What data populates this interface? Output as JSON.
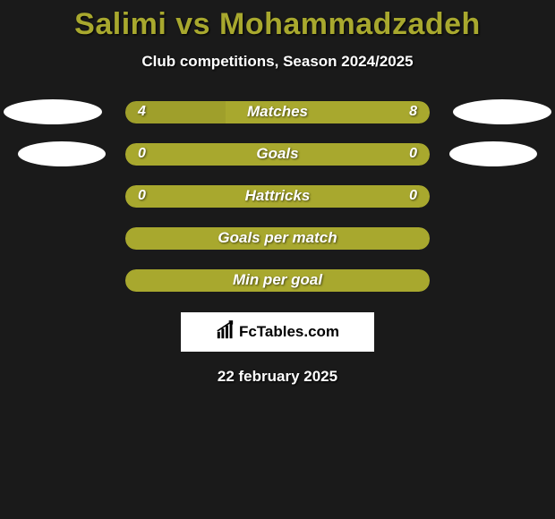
{
  "title": "Salimi vs Mohammadzadeh",
  "subtitle": "Club competitions, Season 2024/2025",
  "date": "22 february 2025",
  "colors": {
    "primary_bar": "#a8a82e",
    "secondary_bar": "#9f9f2b",
    "bar_plain": "#a8a82e",
    "background": "#1a1a1a",
    "ellipse": "#ffffff",
    "title_color": "#a8a82e"
  },
  "rows": [
    {
      "label": "Matches",
      "left_value": "4",
      "right_value": "8",
      "left_pct": 33,
      "right_pct": 67,
      "show_ellipses": true,
      "ellipse_small": false,
      "show_numbers": true,
      "split": true
    },
    {
      "label": "Goals",
      "left_value": "0",
      "right_value": "0",
      "left_pct": 50,
      "right_pct": 50,
      "show_ellipses": true,
      "ellipse_small": true,
      "show_numbers": true,
      "split": false
    },
    {
      "label": "Hattricks",
      "left_value": "0",
      "right_value": "0",
      "left_pct": 50,
      "right_pct": 50,
      "show_ellipses": false,
      "ellipse_small": false,
      "show_numbers": true,
      "split": false
    },
    {
      "label": "Goals per match",
      "left_value": "",
      "right_value": "",
      "left_pct": 0,
      "right_pct": 0,
      "show_ellipses": false,
      "ellipse_small": false,
      "show_numbers": false,
      "split": false
    },
    {
      "label": "Min per goal",
      "left_value": "",
      "right_value": "",
      "left_pct": 0,
      "right_pct": 0,
      "show_ellipses": false,
      "ellipse_small": false,
      "show_numbers": false,
      "split": false
    }
  ],
  "logo": {
    "text": "FcTables.com"
  }
}
